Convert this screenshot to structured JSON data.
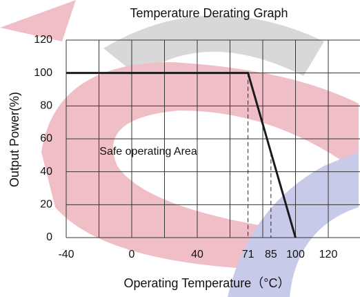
{
  "chart_data": {
    "type": "line",
    "title": "Temperature Derating Graph",
    "x_label": "Operating Temperature（°C）",
    "y_label": "Output Power(%)",
    "annotation": "Safe operating Area",
    "x": [
      -40,
      71,
      100
    ],
    "series": [
      {
        "name": "Output Power",
        "color": "#1a1a1a",
        "values": [
          100,
          100,
          0
        ]
      }
    ],
    "xlim": [
      -40,
      140
    ],
    "ylim": [
      0,
      120
    ],
    "xticks": [
      -40,
      0,
      40,
      71,
      85,
      100,
      120
    ],
    "yticks": [
      0,
      20,
      40,
      60,
      80,
      100,
      120
    ],
    "xgrid": [
      -40,
      -20,
      0,
      20,
      40,
      60,
      80,
      100,
      120
    ],
    "dashed_x": [
      71,
      85
    ],
    "grid": true
  }
}
